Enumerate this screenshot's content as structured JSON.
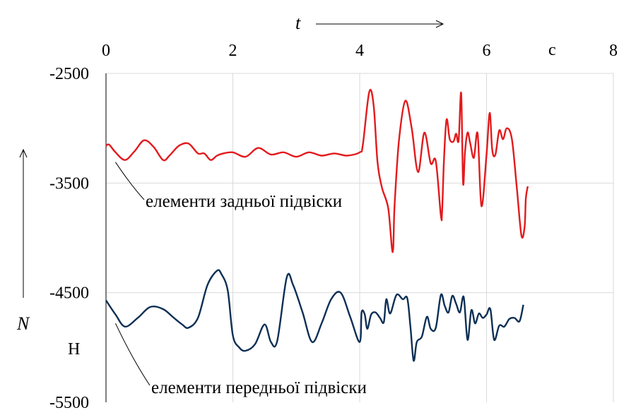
{
  "chart_data": {
    "type": "line",
    "x_symbol": "t",
    "x_unit": "с",
    "y_symbol": "N",
    "y_unit": "Н",
    "xlim": [
      0,
      8
    ],
    "ylim": [
      -5500,
      -2500
    ],
    "x_ticks": [
      0,
      2,
      4,
      6,
      8
    ],
    "x_tick_labels": [
      "0",
      "2",
      "4",
      "6",
      "8"
    ],
    "y_ticks": [
      -2500,
      -3500,
      -4500,
      -5500
    ],
    "y_tick_labels": [
      "-2500",
      "-3500",
      "-4500",
      "-5500"
    ],
    "grid": true,
    "x_axis_position": "top",
    "series": [
      {
        "name": "елементи задньої підвіски",
        "color": "#e31a1c",
        "x": [
          0,
          0.05,
          0.15,
          0.3,
          0.45,
          0.6,
          0.75,
          0.9,
          1.0,
          1.15,
          1.3,
          1.45,
          1.55,
          1.65,
          1.75,
          1.85,
          2.0,
          2.2,
          2.4,
          2.6,
          2.8,
          3.0,
          3.2,
          3.4,
          3.6,
          3.8,
          4.0,
          4.05,
          4.15,
          4.22,
          4.28,
          4.35,
          4.45,
          4.52,
          4.55,
          4.62,
          4.72,
          4.82,
          4.92,
          5.02,
          5.12,
          5.2,
          5.28,
          5.3,
          5.33,
          5.37,
          5.42,
          5.48,
          5.52,
          5.56,
          5.6,
          5.63,
          5.66,
          5.7,
          5.74,
          5.8,
          5.86,
          5.92,
          6.0,
          6.05,
          6.09,
          6.14,
          6.2,
          6.26,
          6.32,
          6.4,
          6.48,
          6.55,
          6.6,
          6.62,
          6.65
        ],
        "y": [
          -3160,
          -3150,
          -3220,
          -3290,
          -3210,
          -3110,
          -3170,
          -3290,
          -3250,
          -3160,
          -3140,
          -3230,
          -3230,
          -3290,
          -3250,
          -3230,
          -3220,
          -3260,
          -3180,
          -3240,
          -3220,
          -3260,
          -3220,
          -3250,
          -3230,
          -3250,
          -3220,
          -3150,
          -2670,
          -2790,
          -3300,
          -3540,
          -3730,
          -4130,
          -3700,
          -3110,
          -2750,
          -3000,
          -3400,
          -3040,
          -3320,
          -3300,
          -3800,
          -3750,
          -3270,
          -2920,
          -3100,
          -3120,
          -3050,
          -3110,
          -2680,
          -3500,
          -3220,
          -3040,
          -3130,
          -3270,
          -3050,
          -3710,
          -3240,
          -2860,
          -3200,
          -3240,
          -3020,
          -3100,
          -3000,
          -3100,
          -3560,
          -3980,
          -3900,
          -3640,
          -3530
        ]
      },
      {
        "name": "елементи передньої підвіски",
        "color": "#0d2f55",
        "x": [
          0,
          0.15,
          0.3,
          0.5,
          0.7,
          0.9,
          1.05,
          1.2,
          1.3,
          1.45,
          1.6,
          1.75,
          1.82,
          1.92,
          2.0,
          2.1,
          2.2,
          2.35,
          2.5,
          2.6,
          2.7,
          2.85,
          2.95,
          3.1,
          3.25,
          3.4,
          3.55,
          3.7,
          3.85,
          4.0,
          4.03,
          4.08,
          4.12,
          4.18,
          4.25,
          4.32,
          4.38,
          4.42,
          4.48,
          4.58,
          4.68,
          4.75,
          4.8,
          4.85,
          4.9,
          4.98,
          5.06,
          5.12,
          5.2,
          5.28,
          5.34,
          5.4,
          5.46,
          5.52,
          5.58,
          5.64,
          5.7,
          5.76,
          5.82,
          5.88,
          5.94,
          6.0,
          6.06,
          6.12,
          6.2,
          6.28,
          6.36,
          6.44,
          6.52,
          6.58
        ],
        "y": [
          -4570,
          -4700,
          -4810,
          -4730,
          -4630,
          -4650,
          -4720,
          -4790,
          -4820,
          -4730,
          -4430,
          -4300,
          -4330,
          -4480,
          -4890,
          -5000,
          -5030,
          -4970,
          -4790,
          -4950,
          -4940,
          -4360,
          -4430,
          -4680,
          -4950,
          -4780,
          -4560,
          -4500,
          -4720,
          -4950,
          -4680,
          -4700,
          -4830,
          -4700,
          -4680,
          -4730,
          -4770,
          -4560,
          -4690,
          -4520,
          -4560,
          -4550,
          -4810,
          -5120,
          -4950,
          -4900,
          -4720,
          -4830,
          -4820,
          -4520,
          -4620,
          -4680,
          -4530,
          -4600,
          -4680,
          -4540,
          -4930,
          -4660,
          -4780,
          -4690,
          -4730,
          -4700,
          -4650,
          -4930,
          -4800,
          -4810,
          -4740,
          -4730,
          -4760,
          -4610
        ]
      }
    ],
    "annotations": [
      {
        "text": "елементи задньої підвіски",
        "series": 0
      },
      {
        "text": "елементи передньої підвіски",
        "series": 1
      }
    ]
  }
}
